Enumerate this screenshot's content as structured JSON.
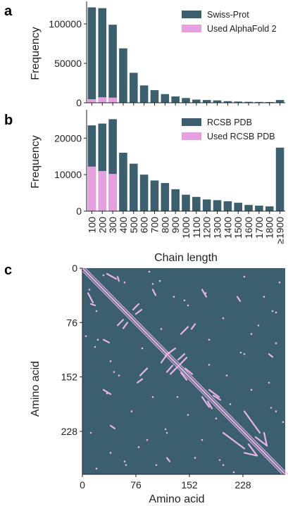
{
  "panel_letters": {
    "a": "a",
    "b": "b",
    "c": "c"
  },
  "colors": {
    "bar": "#3b5f6d",
    "highlight": "#e6a0e0",
    "matrix_bg": "#3b5f6d",
    "contact": "#e8b3e6"
  },
  "chart_data": [
    {
      "id": "a",
      "type": "bar",
      "stacked": false,
      "ylabel": "Frequency",
      "yticks": [
        0,
        50000,
        100000
      ],
      "ytick_labels": [
        "0",
        "50000",
        "100000"
      ],
      "ylim": [
        0,
        125000
      ],
      "legend": {
        "position": "top-right",
        "items": [
          "Swiss-Prot",
          "Used AlphaFold 2"
        ]
      },
      "categories": [
        "100",
        "200",
        "300",
        "400",
        "500",
        "600",
        "700",
        "800",
        "900",
        "1000",
        "1100",
        "1200",
        "1300",
        "1400",
        "1500",
        "1600",
        "1700",
        "1800",
        "≥1900"
      ],
      "series": [
        {
          "name": "Swiss-Prot",
          "color": "#3b5f6d",
          "values": [
            121000,
            120000,
            99000,
            69000,
            38000,
            22000,
            16000,
            11000,
            8000,
            6000,
            4000,
            3500,
            3000,
            2000,
            1500,
            1200,
            1000,
            900,
            3500
          ]
        },
        {
          "name": "Used AlphaFold 2",
          "color": "#e6a0e0",
          "values": [
            4500,
            7000,
            6500,
            0,
            0,
            0,
            0,
            0,
            0,
            0,
            0,
            0,
            0,
            0,
            0,
            0,
            0,
            0,
            0
          ]
        }
      ]
    },
    {
      "id": "b",
      "type": "bar",
      "stacked": false,
      "ylabel": "Frequency",
      "yticks": [
        0,
        10000,
        20000
      ],
      "ytick_labels": [
        "0",
        "10000",
        "20000"
      ],
      "ylim": [
        0,
        27000
      ],
      "xlabel": "Chain length",
      "legend": {
        "position": "top-right",
        "items": [
          "RCSB PDB",
          "Used RCSB PDB"
        ]
      },
      "categories": [
        "100",
        "200",
        "300",
        "400",
        "500",
        "600",
        "700",
        "800",
        "900",
        "1000",
        "1100",
        "1200",
        "1300",
        "1400",
        "1500",
        "1600",
        "1700",
        "1800",
        "≥1900"
      ],
      "xtick_labels": [
        "100",
        "200",
        "300",
        "400",
        "500",
        "600",
        "700",
        "800",
        "900",
        "1000",
        "1100",
        "1200",
        "1300",
        "1400",
        "1500",
        "1600",
        "1700",
        "1800",
        "≥1900"
      ],
      "series": [
        {
          "name": "RCSB PDB",
          "color": "#3b5f6d",
          "values": [
            23500,
            24000,
            25200,
            16000,
            13000,
            10000,
            8400,
            7700,
            6000,
            4500,
            3900,
            3200,
            3000,
            2700,
            2300,
            1700,
            1500,
            1300,
            17400
          ]
        },
        {
          "name": "Used RCSB PDB",
          "color": "#e6a0e0",
          "values": [
            12200,
            11000,
            10200,
            0,
            0,
            0,
            0,
            0,
            0,
            0,
            0,
            0,
            0,
            0,
            0,
            0,
            0,
            0,
            0
          ]
        }
      ]
    },
    {
      "id": "c",
      "type": "heatmap",
      "xlabel": "Amino acid",
      "ylabel": "Amino acid",
      "size": 288,
      "ticks": [
        0,
        76,
        152,
        228
      ],
      "tick_labels": [
        "0",
        "76",
        "152",
        "228"
      ],
      "contacts": [
        {
          "i0": 8,
          "j0": 35,
          "i1": 15,
          "j1": 48
        },
        {
          "i0": 12,
          "j0": 50,
          "i1": 18,
          "j1": 52
        },
        {
          "i0": 50,
          "j0": 80,
          "i1": 58,
          "j1": 72
        },
        {
          "i0": 58,
          "j0": 84,
          "i1": 64,
          "j1": 76
        },
        {
          "i0": 78,
          "j0": 160,
          "i1": 85,
          "j1": 155
        },
        {
          "i0": 112,
          "j0": 132,
          "i1": 122,
          "j1": 118
        },
        {
          "i0": 120,
          "j0": 145,
          "i1": 128,
          "j1": 136
        },
        {
          "i0": 125,
          "j0": 148,
          "i1": 135,
          "j1": 138
        },
        {
          "i0": 140,
          "j0": 92,
          "i1": 150,
          "j1": 82
        },
        {
          "i0": 146,
          "j0": 140,
          "i1": 156,
          "j1": 148
        },
        {
          "i0": 170,
          "j0": 180,
          "i1": 180,
          "j1": 194
        },
        {
          "i0": 178,
          "j0": 186,
          "i1": 184,
          "j1": 196
        },
        {
          "i0": 200,
          "j0": 230,
          "i1": 230,
          "j1": 252
        },
        {
          "i0": 236,
          "j0": 246,
          "i1": 248,
          "j1": 262
        },
        {
          "i0": 258,
          "j0": 230,
          "i1": 262,
          "j1": 248
        },
        {
          "i0": 220,
          "j0": 40,
          "i1": 224,
          "j1": 46
        },
        {
          "i0": 265,
          "j0": 120,
          "i1": 270,
          "j1": 124
        },
        {
          "i0": 30,
          "j0": 170,
          "i1": 40,
          "j1": 176
        },
        {
          "i0": 100,
          "j0": 30,
          "i1": 104,
          "j1": 38
        }
      ],
      "dots": [
        [
          30,
          10
        ],
        [
          60,
          20
        ],
        [
          95,
          5
        ],
        [
          110,
          18
        ],
        [
          130,
          40
        ],
        [
          22,
          100
        ],
        [
          45,
          145
        ],
        [
          70,
          200
        ],
        [
          92,
          240
        ],
        [
          105,
          275
        ],
        [
          160,
          265
        ],
        [
          190,
          210
        ],
        [
          205,
          150
        ],
        [
          230,
          120
        ],
        [
          250,
          80
        ],
        [
          270,
          60
        ],
        [
          280,
          20
        ],
        [
          12,
          230
        ],
        [
          40,
          258
        ],
        [
          62,
          275
        ],
        [
          200,
          275
        ],
        [
          215,
          285
        ],
        [
          175,
          35
        ],
        [
          150,
          52
        ],
        [
          85,
          112
        ],
        [
          135,
          180
        ],
        [
          118,
          225
        ],
        [
          240,
          170
        ],
        [
          268,
          195
        ],
        [
          180,
          100
        ]
      ]
    }
  ]
}
